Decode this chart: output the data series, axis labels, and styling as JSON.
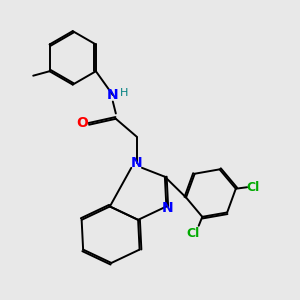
{
  "background_color": "#e8e8e8",
  "bond_color": "#000000",
  "n_color": "#0000ff",
  "o_color": "#ff0000",
  "cl_color": "#00aa00",
  "h_color": "#008080",
  "line_width": 1.4,
  "dbo": 0.055,
  "font_size": 9,
  "fig_size": [
    3.0,
    3.0
  ],
  "dpi": 100,
  "xlim": [
    0,
    10
  ],
  "ylim": [
    0,
    10
  ]
}
